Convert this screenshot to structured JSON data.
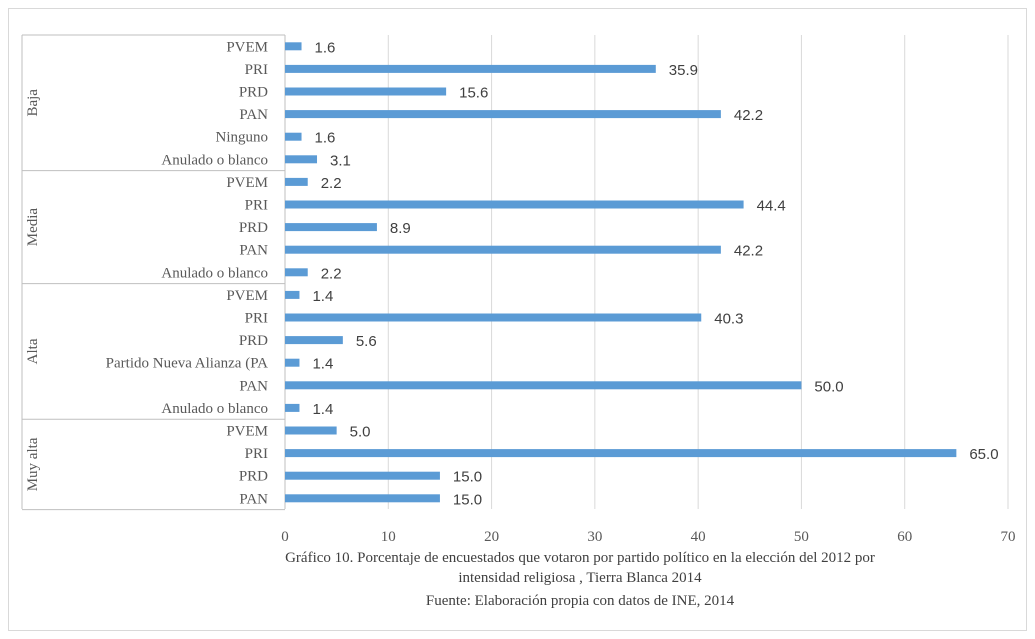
{
  "chart_data": {
    "type": "bar",
    "orientation": "horizontal",
    "xlim": [
      0,
      70
    ],
    "x_ticks": [
      "0",
      "10",
      "20",
      "30",
      "40",
      "50",
      "60",
      "70"
    ],
    "grid": "vertical",
    "legend": "none",
    "bar_color": "#5b9bd5",
    "groups": [
      {
        "name": "Baja",
        "categories": [
          "PVEM",
          "PRI",
          "PRD",
          "PAN",
          "Ninguno",
          "Anulado o blanco"
        ],
        "values": [
          1.6,
          35.9,
          15.6,
          42.2,
          1.6,
          3.1
        ],
        "labels": [
          "1.6",
          "35.9",
          "15.6",
          "42.2",
          "1.6",
          "3.1"
        ]
      },
      {
        "name": "Media",
        "categories": [
          "PVEM",
          "PRI",
          "PRD",
          "PAN",
          "Anulado o blanco"
        ],
        "values": [
          2.2,
          44.4,
          8.9,
          42.2,
          2.2
        ],
        "labels": [
          "2.2",
          "44.4",
          "8.9",
          "42.2",
          "2.2"
        ]
      },
      {
        "name": "Alta",
        "categories": [
          "PVEM",
          "PRI",
          "PRD",
          "Partido Nueva Alianza (PA",
          "PAN",
          "Anulado o blanco"
        ],
        "values": [
          1.4,
          40.3,
          5.6,
          1.4,
          50.0,
          1.4
        ],
        "labels": [
          "1.4",
          "40.3",
          "5.6",
          "1.4",
          "50.0",
          "1.4"
        ]
      },
      {
        "name": "Muy alta",
        "categories": [
          "PVEM",
          "PRI",
          "PRD",
          "PAN"
        ],
        "values": [
          5.0,
          65.0,
          15.0,
          15.0
        ],
        "labels": [
          "5.0",
          "65.0",
          "15.0",
          "15.0"
        ]
      }
    ]
  },
  "caption": {
    "line1": "Gráfico 10. Porcentaje de encuestados que votaron  por partido político en la elección del 2012 por",
    "line2": "intensidad religiosa , Tierra Blanca 2014",
    "line3": "Fuente: Elaboración propia con datos de INE, 2014"
  }
}
